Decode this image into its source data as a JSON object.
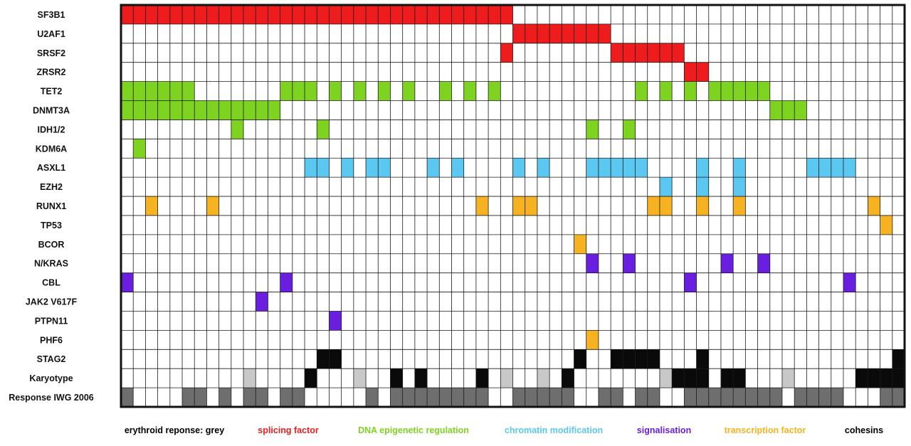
{
  "chart_data": {
    "type": "heatmap",
    "n_samples": 64,
    "legend": [
      {
        "label": "erythroid reponse: grey",
        "color": "#000000"
      },
      {
        "label": "splicing factor",
        "color": "#ee1c1c"
      },
      {
        "label": "DNA epigenetic regulation",
        "color": "#7ed321"
      },
      {
        "label": "chromatin modification",
        "color": "#5ac8f0"
      },
      {
        "label": "signalisation",
        "color": "#6a1ee0"
      },
      {
        "label": "transcription factor",
        "color": "#f6b221"
      },
      {
        "label": "cohesins",
        "color": "#000000"
      }
    ],
    "category_colors": {
      "splicing": "#ee1c1c",
      "epigenetic": "#7ed321",
      "chromatin": "#5ac8f0",
      "signal": "#6a1ee0",
      "tf": "#f6b221",
      "cohesin": "#0a0a0a",
      "kary_black": "#0a0a0a",
      "kary_light": "#c8c8c8",
      "response_grey": "#6e6e6e"
    },
    "rows": [
      {
        "label": "SF3B1",
        "category": "splicing",
        "mutated": [
          0,
          1,
          2,
          3,
          4,
          5,
          6,
          7,
          8,
          9,
          10,
          11,
          12,
          13,
          14,
          15,
          16,
          17,
          18,
          19,
          20,
          21,
          22,
          23,
          24,
          25,
          26,
          27,
          28,
          29,
          30,
          31
        ]
      },
      {
        "label": "U2AF1",
        "category": "splicing",
        "mutated": [
          32,
          33,
          34,
          35,
          36,
          37,
          38,
          39
        ]
      },
      {
        "label": "SRSF2",
        "category": "splicing",
        "mutated": [
          31,
          40,
          41,
          42,
          43,
          44,
          45
        ]
      },
      {
        "label": "ZRSR2",
        "category": "splicing",
        "mutated": [
          46,
          47
        ]
      },
      {
        "label": "TET2",
        "category": "epigenetic",
        "mutated": [
          0,
          1,
          2,
          3,
          4,
          5,
          13,
          14,
          15,
          17,
          19,
          21,
          23,
          26,
          28,
          30,
          42,
          44,
          46,
          48,
          49,
          50,
          51,
          52
        ]
      },
      {
        "label": "DNMT3A",
        "category": "epigenetic",
        "mutated": [
          0,
          1,
          2,
          3,
          4,
          5,
          6,
          7,
          8,
          9,
          10,
          11,
          12,
          53,
          54,
          55
        ]
      },
      {
        "label": "IDH1/2",
        "category": "epigenetic",
        "mutated": [
          9,
          16,
          38,
          41
        ]
      },
      {
        "label": "KDM6A",
        "category": "epigenetic",
        "mutated": [
          1
        ]
      },
      {
        "label": "ASXL1",
        "category": "chromatin",
        "mutated": [
          15,
          16,
          18,
          20,
          21,
          25,
          27,
          32,
          34,
          38,
          39,
          40,
          41,
          42,
          47,
          50,
          56,
          57,
          58,
          59
        ]
      },
      {
        "label": "EZH2",
        "category": "chromatin",
        "mutated": [
          44,
          47,
          50
        ]
      },
      {
        "label": "RUNX1",
        "category": "tf",
        "mutated": [
          2,
          7,
          29,
          32,
          33,
          43,
          44,
          47,
          50,
          61
        ]
      },
      {
        "label": "TP53",
        "category": "tf",
        "mutated": [
          62
        ]
      },
      {
        "label": "BCOR",
        "category": "tf",
        "mutated": [
          37
        ]
      },
      {
        "label": "N/KRAS",
        "category": "signal",
        "mutated": [
          38,
          41,
          49,
          52
        ]
      },
      {
        "label": "CBL",
        "category": "signal",
        "mutated": [
          0,
          13,
          46,
          59
        ]
      },
      {
        "label": "JAK2 V617F",
        "category": "signal",
        "mutated": [
          11
        ]
      },
      {
        "label": "PTPN11",
        "category": "signal",
        "mutated": [
          17
        ]
      },
      {
        "label": "PHF6",
        "category": "tf",
        "mutated": [
          38
        ]
      },
      {
        "label": "STAG2",
        "category": "cohesin",
        "mutated": [
          16,
          17,
          37,
          40,
          41,
          42,
          43,
          47,
          63
        ]
      },
      {
        "label": "Karyotype",
        "category": "karyotype",
        "black": [
          15,
          22,
          24,
          29,
          36,
          45,
          46,
          47,
          49,
          50,
          60,
          61,
          62,
          63
        ],
        "light": [
          10,
          19,
          31,
          34,
          44,
          54
        ]
      },
      {
        "label": "Response IWG 2006",
        "category": "response",
        "grey": [
          0,
          5,
          6,
          8,
          10,
          11,
          13,
          14,
          20,
          22,
          23,
          24,
          25,
          26,
          27,
          28,
          29,
          32,
          33,
          34,
          35,
          36,
          39,
          40,
          42,
          43,
          46,
          47,
          48,
          49,
          50,
          51,
          52,
          53,
          55,
          56,
          57,
          58,
          62,
          63
        ]
      }
    ]
  }
}
